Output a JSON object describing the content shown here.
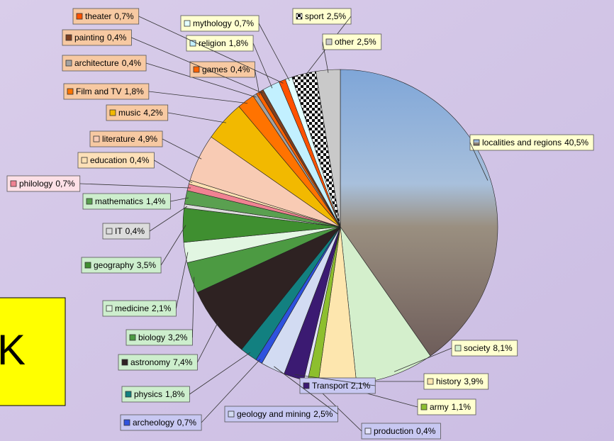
{
  "chart_data": {
    "type": "pie",
    "categories": [
      "localities and regions",
      "society",
      "history",
      "army",
      "production",
      "Transport",
      "geology and mining",
      "archeology",
      "physics",
      "astronomy",
      "biology",
      "medicine",
      "geography",
      "IT",
      "mathematics",
      "philology",
      "education",
      "literature",
      "music",
      "Film and TV",
      "architecture",
      "games",
      "painting",
      "religion",
      "theater",
      "mythology",
      "sport",
      "other"
    ],
    "values": [
      40.5,
      8.1,
      3.9,
      1.1,
      0.4,
      2.1,
      2.5,
      0.7,
      1.8,
      7.4,
      3.2,
      2.1,
      3.5,
      0.4,
      1.4,
      0.7,
      0.4,
      4.9,
      4.2,
      1.8,
      0.4,
      0.4,
      0.4,
      1.8,
      0.7,
      0.7,
      2.5,
      2.5
    ],
    "value_labels": [
      "40,5%",
      "8,1%",
      "3,9%",
      "1,1%",
      "0,4%",
      "2,1%",
      "2,5%",
      "0,7%",
      "1,8%",
      "7,4%",
      "3,2%",
      "2,1%",
      "3,5%",
      "0,4%",
      "1,4%",
      "0,7%",
      "0,4%",
      "4,9%",
      "4,2%",
      "1,8%",
      "0,4%",
      "0,4%",
      "0,4%",
      "1,8%",
      "0,7%",
      "0,7%",
      "2,5%",
      "2,5%"
    ],
    "colors": [
      "#7fa6d8",
      "#d4efcc",
      "#fde6ae",
      "#8dbf2e",
      "#e4e4fb",
      "#3b1a72",
      "#d2dbf2",
      "#2f52de",
      "#128080",
      "#2e2222",
      "#4c9a42",
      "#e2f6e2",
      "#3f8f30",
      "#dcdcdc",
      "#5aa050",
      "#f08292",
      "#fde1b3",
      "#f8cbb4",
      "#f2b900",
      "#ff7300",
      "#a3a3a3",
      "#ff6200",
      "#7e4020",
      "#c2f0ff",
      "#ff5200",
      "#e2ffff",
      "#111111",
      "#c9c9c9"
    ]
  },
  "slide": {
    "text": "K"
  }
}
